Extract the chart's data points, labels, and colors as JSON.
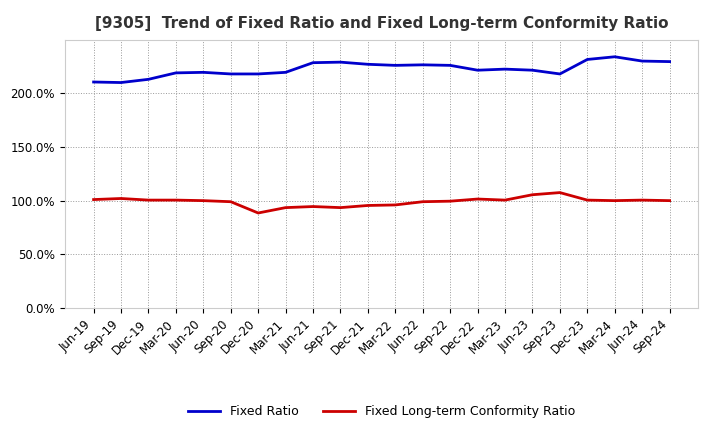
{
  "title": "[9305]  Trend of Fixed Ratio and Fixed Long-term Conformity Ratio",
  "x_labels": [
    "Jun-19",
    "Sep-19",
    "Dec-19",
    "Mar-20",
    "Jun-20",
    "Sep-20",
    "Dec-20",
    "Mar-21",
    "Jun-21",
    "Sep-21",
    "Dec-21",
    "Mar-22",
    "Jun-22",
    "Sep-22",
    "Dec-22",
    "Mar-23",
    "Jun-23",
    "Sep-23",
    "Dec-23",
    "Mar-24",
    "Jun-24",
    "Sep-24"
  ],
  "fixed_ratio": [
    210.5,
    210.0,
    213.0,
    219.0,
    219.5,
    218.0,
    218.0,
    219.5,
    228.5,
    229.0,
    227.0,
    226.0,
    226.5,
    226.0,
    221.5,
    222.5,
    221.5,
    218.0,
    231.5,
    234.0,
    230.0,
    229.5
  ],
  "fixed_lt_ratio": [
    101.0,
    102.0,
    100.5,
    100.5,
    100.0,
    99.0,
    88.5,
    93.5,
    94.5,
    93.5,
    95.5,
    96.0,
    99.0,
    99.5,
    101.5,
    100.5,
    105.5,
    107.5,
    100.5,
    100.0,
    100.5,
    100.0
  ],
  "fixed_ratio_color": "#0000CC",
  "fixed_lt_ratio_color": "#CC0000",
  "background_color": "#FFFFFF",
  "plot_bg_color": "#FFFFFF",
  "grid_color": "#999999",
  "title_color": "#333333",
  "ylim": [
    0,
    250
  ],
  "yticks": [
    0.0,
    50.0,
    100.0,
    150.0,
    200.0
  ],
  "legend_fixed_ratio": "Fixed Ratio",
  "legend_fixed_lt_ratio": "Fixed Long-term Conformity Ratio",
  "title_fontsize": 11,
  "tick_fontsize": 8.5,
  "linewidth": 2.0
}
